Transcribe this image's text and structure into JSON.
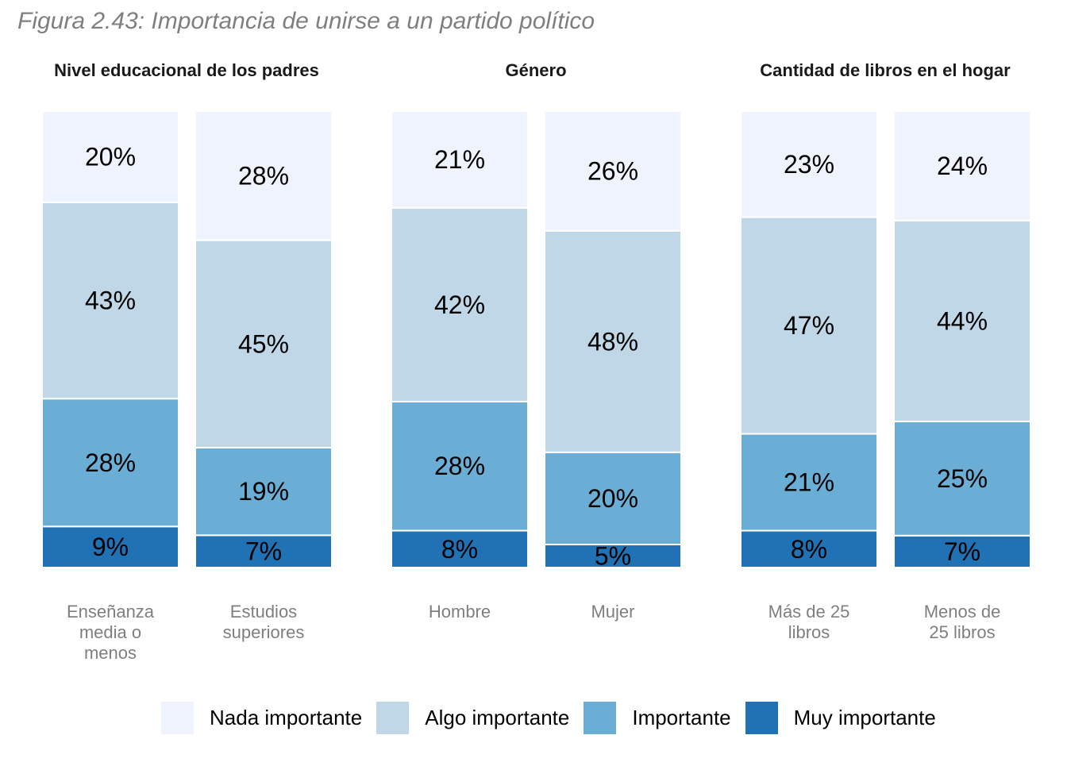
{
  "figure_title": "Figura 2.43: Importancia de unirse a un partido político",
  "legend": [
    {
      "key": "nada",
      "label": "Nada importante",
      "color": "#eef3fe"
    },
    {
      "key": "algo",
      "label": "Algo importante",
      "color": "#bfd7e6"
    },
    {
      "key": "imp",
      "label": "Importante",
      "color": "#6aaed6"
    },
    {
      "key": "muy",
      "label": "Muy importante",
      "color": "#2171b5"
    }
  ],
  "chart_data": {
    "type": "bar",
    "stacked": true,
    "percent": true,
    "stack_order_bottom_to_top": [
      "Muy importante",
      "Importante",
      "Algo importante",
      "Nada importante"
    ],
    "panels": [
      {
        "title": "Nivel educacional de los padres",
        "bars": [
          {
            "category": [
              "Enseñanza",
              "media o",
              "menos"
            ],
            "values": {
              "Muy importante": 9,
              "Importante": 28,
              "Algo importante": 43,
              "Nada importante": 20
            }
          },
          {
            "category": [
              "Estudios",
              "superiores"
            ],
            "values": {
              "Muy importante": 7,
              "Importante": 19,
              "Algo importante": 45,
              "Nada importante": 28
            }
          }
        ]
      },
      {
        "title": "Género",
        "bars": [
          {
            "category": [
              "Hombre"
            ],
            "values": {
              "Muy importante": 8,
              "Importante": 28,
              "Algo importante": 42,
              "Nada importante": 21
            }
          },
          {
            "category": [
              "Mujer"
            ],
            "values": {
              "Muy importante": 5,
              "Importante": 20,
              "Algo importante": 48,
              "Nada importante": 26
            }
          }
        ]
      },
      {
        "title": "Cantidad de libros en el hogar",
        "bars": [
          {
            "category": [
              "Más de 25",
              "libros"
            ],
            "values": {
              "Muy importante": 8,
              "Importante": 21,
              "Algo importante": 47,
              "Nada importante": 23
            }
          },
          {
            "category": [
              "Menos de",
              "25 libros"
            ],
            "values": {
              "Muy importante": 7,
              "Importante": 25,
              "Algo importante": 44,
              "Nada importante": 24
            }
          }
        ]
      }
    ]
  }
}
